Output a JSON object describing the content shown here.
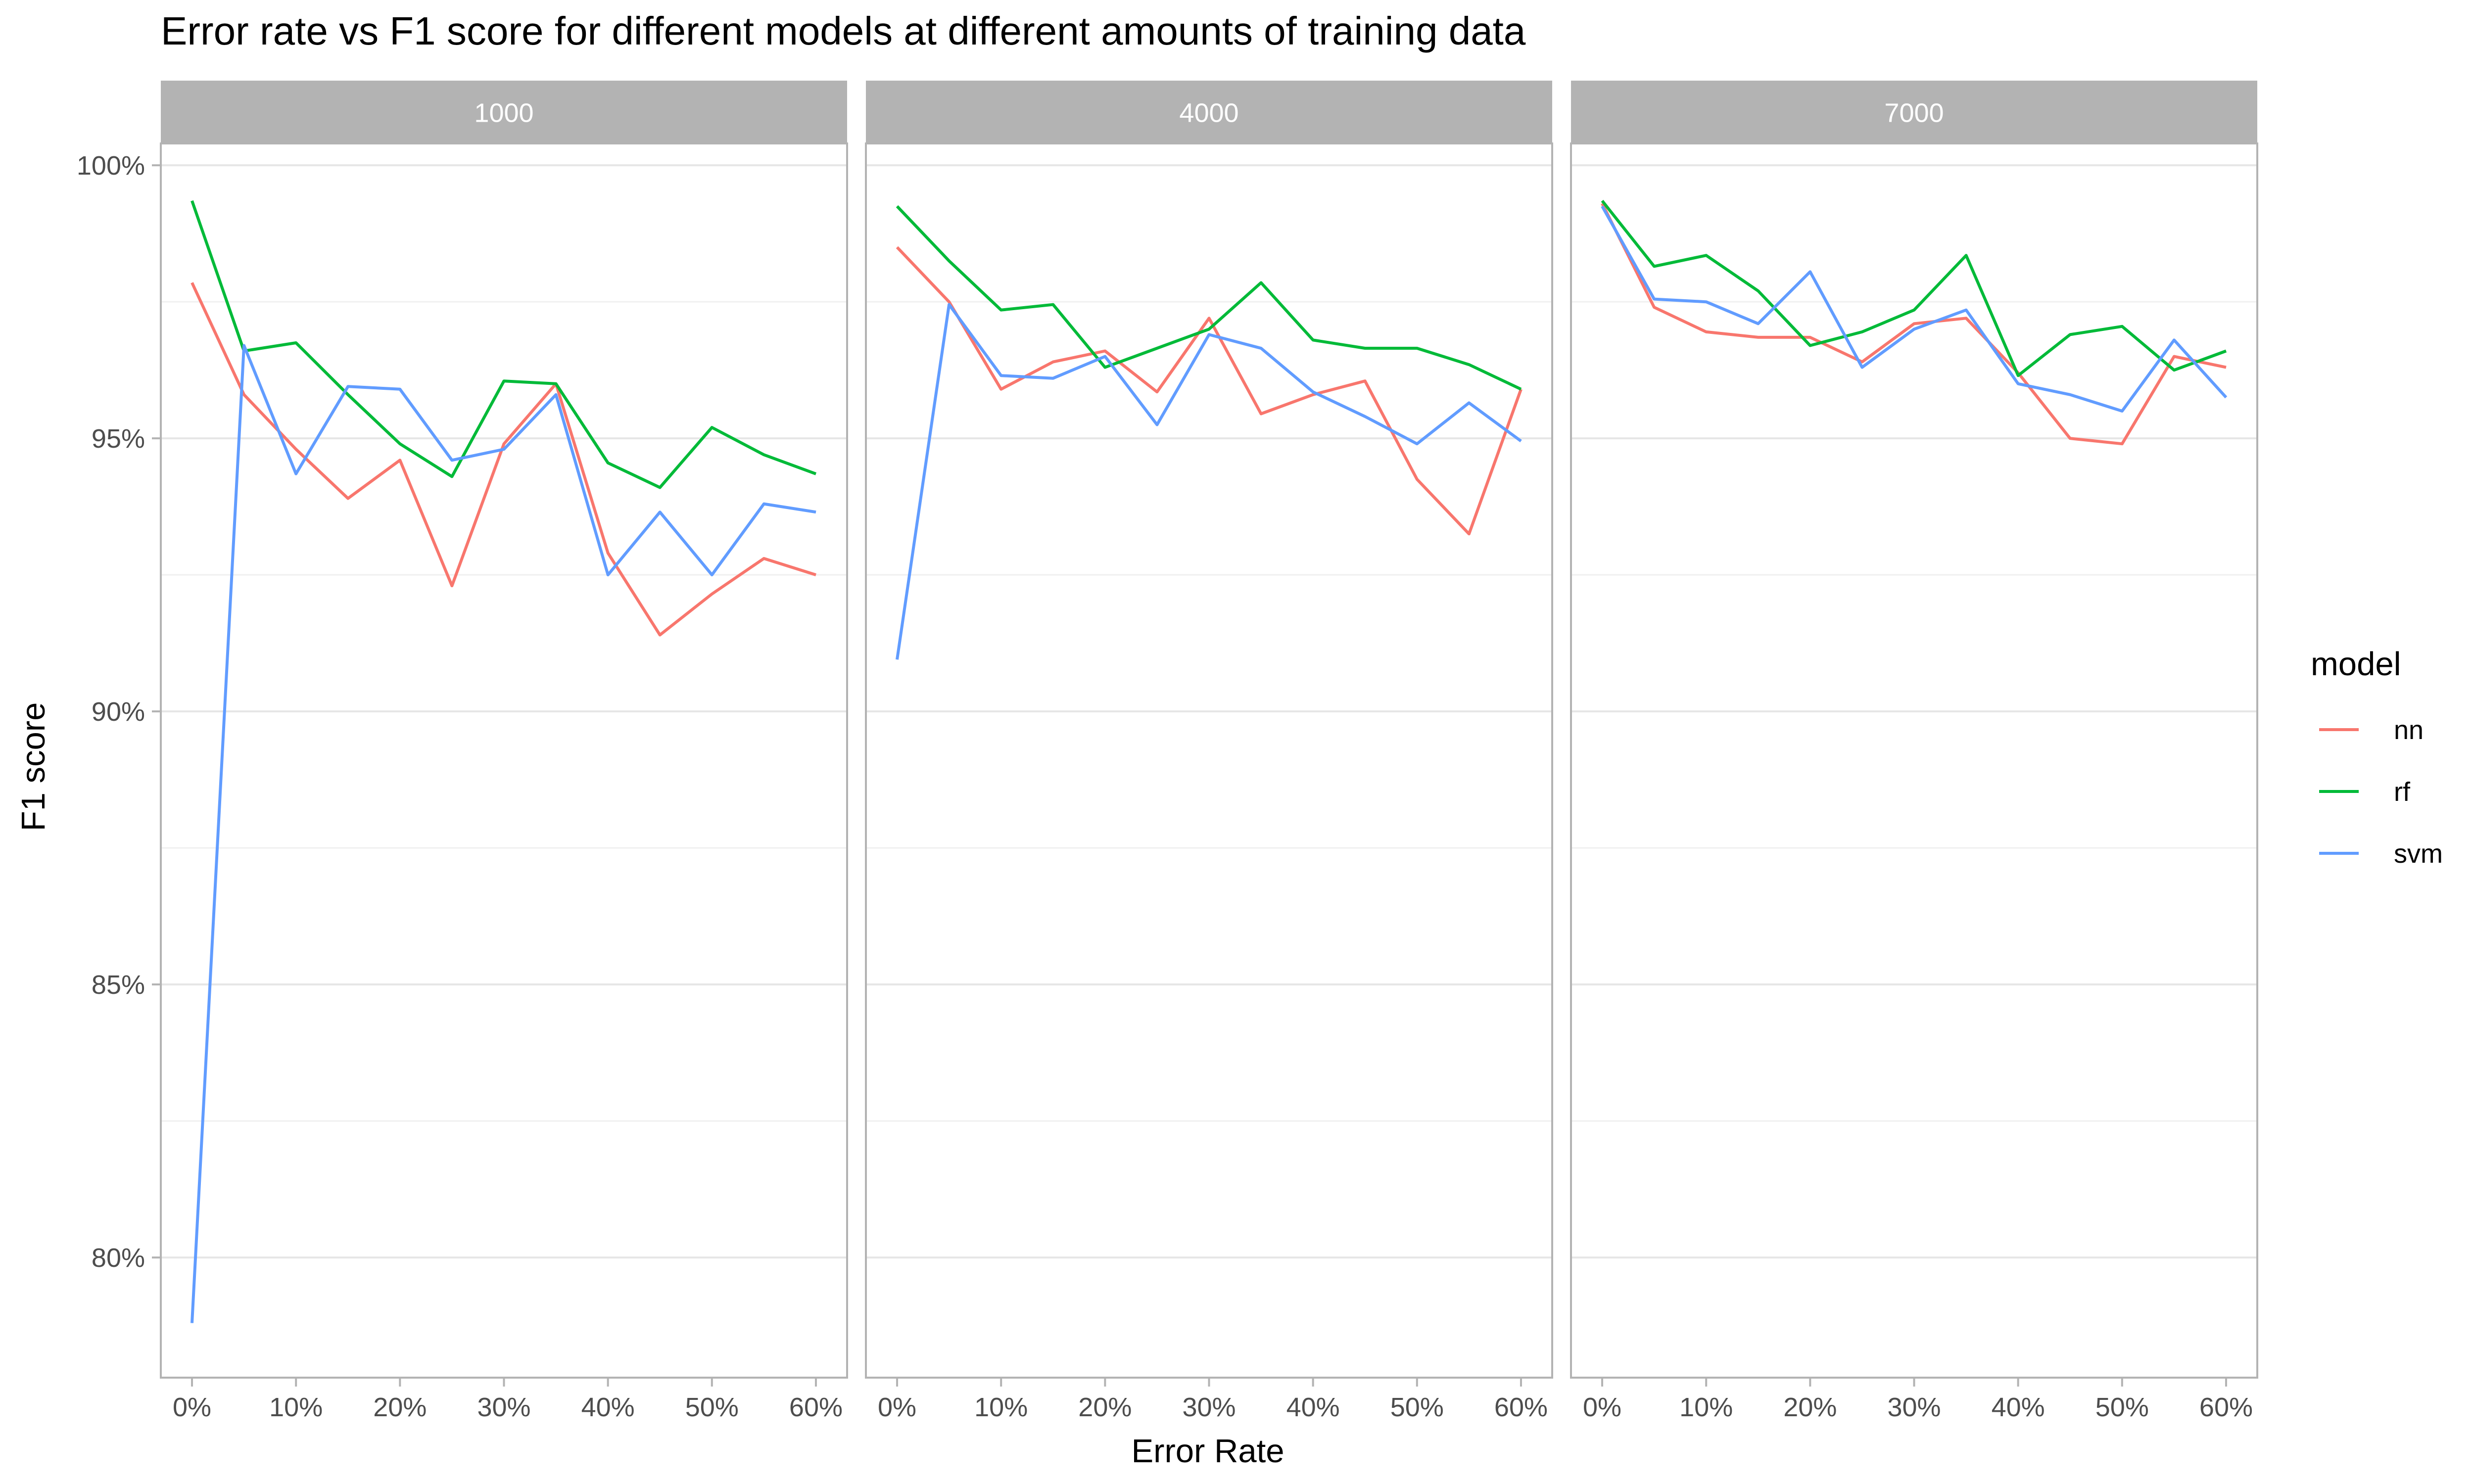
{
  "chart_data": {
    "type": "line",
    "title": "Error rate vs F1 score for different models at different amounts of training data",
    "xlabel": "Error Rate",
    "ylabel": "F1 score",
    "x": [
      0,
      5,
      10,
      15,
      20,
      25,
      30,
      35,
      40,
      45,
      50,
      55,
      60
    ],
    "xticks": [
      0,
      10,
      20,
      30,
      40,
      50,
      60
    ],
    "xtick_labels": [
      "0%",
      "10%",
      "20%",
      "30%",
      "40%",
      "50%",
      "60%"
    ],
    "xlim": [
      -3,
      63
    ],
    "yticks": [
      80,
      85,
      90,
      95,
      100
    ],
    "ytick_labels": [
      "80%",
      "85%",
      "90%",
      "95%",
      "100%"
    ],
    "ylim": [
      77.8,
      100.4
    ],
    "grid": true,
    "legend": {
      "title": "model",
      "placement": "right"
    },
    "colors": {
      "nn": "#F8766D",
      "rf": "#00BA38",
      "svm": "#619CFF",
      "strip_bg": "#b3b3b3",
      "strip_text": "#ffffff",
      "grid": "#e6e6e6",
      "panel_border": "#b3b3b3",
      "text": "#000000",
      "tick_text": "#4d4d4d"
    },
    "facets": [
      {
        "label": "1000",
        "series": [
          {
            "name": "nn",
            "values": [
              97.85,
              95.8,
              94.8,
              93.9,
              94.6,
              92.3,
              94.9,
              96.0,
              92.9,
              91.4,
              92.15,
              92.8,
              92.5
            ]
          },
          {
            "name": "rf",
            "values": [
              99.35,
              96.6,
              96.75,
              95.8,
              94.9,
              94.3,
              96.05,
              96.0,
              94.55,
              94.1,
              95.2,
              94.7,
              94.35
            ]
          },
          {
            "name": "svm",
            "values": [
              78.8,
              96.7,
              94.35,
              95.95,
              95.9,
              94.6,
              94.8,
              95.8,
              92.5,
              93.65,
              92.5,
              93.8,
              93.65
            ]
          }
        ]
      },
      {
        "label": "4000",
        "series": [
          {
            "name": "nn",
            "values": [
              98.5,
              97.5,
              95.9,
              96.4,
              96.6,
              95.85,
              97.2,
              95.45,
              95.8,
              96.05,
              94.25,
              93.25,
              95.9
            ]
          },
          {
            "name": "rf",
            "values": [
              99.25,
              98.25,
              97.35,
              97.45,
              96.3,
              96.65,
              97.0,
              97.85,
              96.8,
              96.65,
              96.65,
              96.35,
              95.9
            ]
          },
          {
            "name": "svm",
            "values": [
              90.95,
              97.45,
              96.15,
              96.1,
              96.5,
              95.25,
              96.9,
              96.65,
              95.85,
              95.4,
              94.9,
              95.65,
              94.95
            ]
          }
        ]
      },
      {
        "label": "7000",
        "series": [
          {
            "name": "nn",
            "values": [
              99.3,
              97.4,
              96.95,
              96.85,
              96.85,
              96.4,
              97.1,
              97.2,
              96.2,
              95.0,
              94.9,
              96.5,
              96.3
            ]
          },
          {
            "name": "rf",
            "values": [
              99.35,
              98.15,
              98.35,
              97.7,
              96.7,
              96.95,
              97.35,
              98.35,
              96.15,
              96.9,
              97.05,
              96.25,
              96.6
            ]
          },
          {
            "name": "svm",
            "values": [
              99.25,
              97.55,
              97.5,
              97.1,
              98.05,
              96.3,
              97.0,
              97.35,
              96.0,
              95.8,
              95.5,
              96.8,
              95.75
            ]
          }
        ]
      }
    ]
  }
}
